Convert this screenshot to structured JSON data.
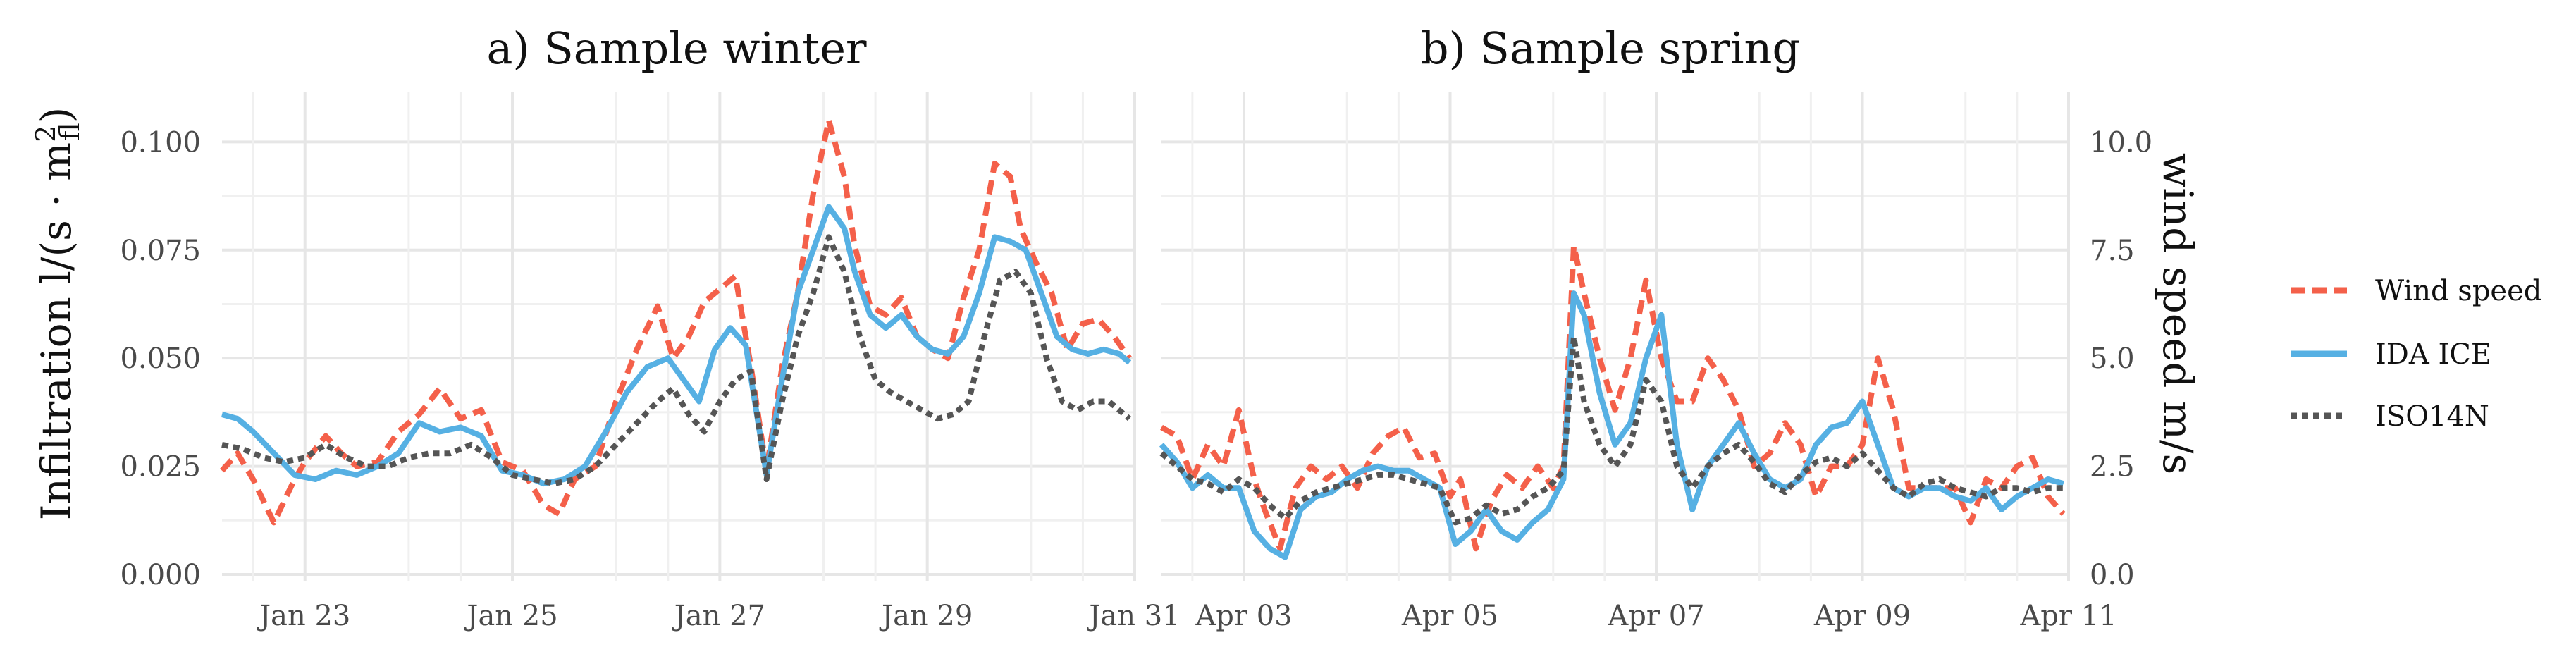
{
  "chart_data": {
    "type": "line",
    "y_axis": {
      "label": "Infiltration l/(s · m²_fl)",
      "label_main": "Infiltration l/(s · m",
      "label_sup": "2",
      "label_sub": "fl",
      "label_close": ")",
      "ylim": [
        0,
        0.11
      ],
      "ticks": [
        "0.000",
        "0.025",
        "0.050",
        "0.075",
        "0.100"
      ]
    },
    "secondary_y_axis": {
      "label": "wind speed m/s",
      "ylim": [
        0,
        11
      ],
      "ticks": [
        "0.0",
        "2.5",
        "5.0",
        "7.5",
        "10.0"
      ]
    },
    "legend": {
      "position": "right",
      "entries": [
        {
          "name": "Wind speed",
          "color": "#f4604a",
          "style": "dashed"
        },
        {
          "name": "IDA ICE",
          "color": "#56b0e3",
          "style": "solid"
        },
        {
          "name": "ISO14N",
          "color": "#555555",
          "style": "dotted"
        }
      ]
    },
    "panels": [
      {
        "title": "a) Sample winter",
        "x_range": [
          22.2,
          31.0
        ],
        "x_ticks": [
          {
            "value": 23,
            "label": "Jan 23"
          },
          {
            "value": 25,
            "label": "Jan 25"
          },
          {
            "value": 27,
            "label": "Jan 27"
          },
          {
            "value": 29,
            "label": "Jan 29"
          },
          {
            "value": 31,
            "label": "Jan 31"
          }
        ],
        "series": [
          {
            "name": "Wind speed",
            "unit": "m/s",
            "x": [
              22.2,
              22.35,
              22.5,
              22.7,
              22.9,
              23.0,
              23.2,
              23.35,
              23.5,
              23.7,
              23.9,
              24.1,
              24.3,
              24.5,
              24.7,
              24.9,
              25.1,
              25.3,
              25.45,
              25.6,
              25.8,
              26.0,
              26.2,
              26.4,
              26.55,
              26.7,
              26.85,
              27.0,
              27.15,
              27.3,
              27.45,
              27.6,
              27.75,
              27.9,
              28.05,
              28.2,
              28.3,
              28.45,
              28.6,
              28.75,
              28.9,
              29.05,
              29.2,
              29.35,
              29.5,
              29.65,
              29.8,
              29.9,
              30.05,
              30.2,
              30.35,
              30.5,
              30.65,
              30.8,
              30.95
            ],
            "values": [
              2.4,
              2.8,
              2.2,
              1.2,
              2.2,
              2.6,
              3.2,
              2.8,
              2.5,
              2.6,
              3.3,
              3.7,
              4.3,
              3.6,
              3.8,
              2.6,
              2.4,
              1.6,
              1.4,
              2.2,
              2.5,
              4.0,
              5.2,
              6.2,
              5.0,
              5.5,
              6.3,
              6.6,
              6.9,
              4.8,
              2.4,
              4.8,
              6.5,
              8.8,
              10.5,
              9.2,
              7.6,
              6.2,
              6.0,
              6.4,
              5.5,
              5.2,
              5.0,
              6.4,
              7.5,
              9.5,
              9.2,
              8.0,
              7.2,
              6.5,
              5.2,
              5.8,
              5.9,
              5.5,
              5.0
            ]
          },
          {
            "name": "IDA ICE",
            "unit": "l/(s·m²)",
            "x": [
              22.2,
              22.35,
              22.5,
              22.7,
              22.9,
              23.1,
              23.3,
              23.5,
              23.7,
              23.9,
              24.1,
              24.3,
              24.5,
              24.7,
              24.9,
              25.1,
              25.3,
              25.5,
              25.7,
              25.9,
              26.1,
              26.3,
              26.5,
              26.65,
              26.8,
              26.95,
              27.1,
              27.25,
              27.45,
              27.6,
              27.75,
              27.9,
              28.05,
              28.2,
              28.3,
              28.45,
              28.6,
              28.75,
              28.9,
              29.05,
              29.2,
              29.35,
              29.5,
              29.65,
              29.8,
              29.95,
              30.1,
              30.25,
              30.4,
              30.55,
              30.7,
              30.85,
              30.95
            ],
            "values": [
              0.037,
              0.036,
              0.033,
              0.028,
              0.023,
              0.022,
              0.024,
              0.023,
              0.025,
              0.028,
              0.035,
              0.033,
              0.034,
              0.032,
              0.024,
              0.023,
              0.021,
              0.022,
              0.025,
              0.033,
              0.042,
              0.048,
              0.05,
              0.045,
              0.04,
              0.052,
              0.057,
              0.053,
              0.023,
              0.045,
              0.065,
              0.075,
              0.085,
              0.08,
              0.07,
              0.06,
              0.057,
              0.06,
              0.055,
              0.052,
              0.051,
              0.055,
              0.065,
              0.078,
              0.077,
              0.075,
              0.065,
              0.055,
              0.052,
              0.051,
              0.052,
              0.051,
              0.049
            ]
          },
          {
            "name": "ISO14N",
            "unit": "l/(s·m²)",
            "x": [
              22.2,
              22.4,
              22.6,
              22.8,
              23.0,
              23.2,
              23.4,
              23.6,
              23.8,
              24.0,
              24.2,
              24.4,
              24.6,
              24.8,
              25.0,
              25.2,
              25.4,
              25.6,
              25.8,
              26.0,
              26.2,
              26.4,
              26.55,
              26.7,
              26.85,
              27.0,
              27.15,
              27.3,
              27.45,
              27.6,
              27.75,
              27.9,
              28.05,
              28.2,
              28.35,
              28.5,
              28.65,
              28.8,
              28.95,
              29.1,
              29.25,
              29.4,
              29.55,
              29.7,
              29.85,
              30.0,
              30.15,
              30.3,
              30.45,
              30.6,
              30.75,
              30.95
            ],
            "values": [
              0.03,
              0.029,
              0.027,
              0.026,
              0.027,
              0.03,
              0.027,
              0.025,
              0.025,
              0.027,
              0.028,
              0.028,
              0.03,
              0.027,
              0.023,
              0.022,
              0.021,
              0.022,
              0.025,
              0.03,
              0.035,
              0.04,
              0.043,
              0.037,
              0.033,
              0.04,
              0.045,
              0.047,
              0.022,
              0.04,
              0.055,
              0.065,
              0.078,
              0.07,
              0.055,
              0.045,
              0.042,
              0.04,
              0.038,
              0.036,
              0.037,
              0.04,
              0.055,
              0.068,
              0.07,
              0.065,
              0.05,
              0.04,
              0.038,
              0.04,
              0.04,
              0.036
            ]
          }
        ]
      },
      {
        "title": "b) Sample spring",
        "x_range": [
          2.2,
          11.0
        ],
        "x_ticks": [
          {
            "value": 3,
            "label": "Apr 03"
          },
          {
            "value": 5,
            "label": "Apr 05"
          },
          {
            "value": 7,
            "label": "Apr 07"
          },
          {
            "value": 9,
            "label": "Apr 09"
          },
          {
            "value": 11,
            "label": "Apr 11"
          }
        ],
        "series": [
          {
            "name": "Wind speed",
            "unit": "m/s",
            "x": [
              2.2,
              2.35,
              2.5,
              2.65,
              2.8,
              2.95,
              3.1,
              3.2,
              3.35,
              3.5,
              3.65,
              3.8,
              3.95,
              4.1,
              4.25,
              4.4,
              4.55,
              4.7,
              4.85,
              5.0,
              5.1,
              5.25,
              5.4,
              5.55,
              5.7,
              5.85,
              6.0,
              6.1,
              6.2,
              6.3,
              6.45,
              6.6,
              6.75,
              6.9,
              7.05,
              7.2,
              7.35,
              7.5,
              7.65,
              7.8,
              7.95,
              8.1,
              8.25,
              8.4,
              8.55,
              8.7,
              8.85,
              9.0,
              9.15,
              9.3,
              9.45,
              9.6,
              9.75,
              9.9,
              10.05,
              10.2,
              10.35,
              10.5,
              10.65,
              10.8,
              10.95
            ],
            "values": [
              3.4,
              3.2,
              2.2,
              3.0,
              2.5,
              3.8,
              2.2,
              1.5,
              0.6,
              2.0,
              2.5,
              2.2,
              2.5,
              2.0,
              2.8,
              3.2,
              3.4,
              2.7,
              2.8,
              1.8,
              2.2,
              0.6,
              1.7,
              2.3,
              2.0,
              2.5,
              2.0,
              2.5,
              7.6,
              6.5,
              5.0,
              3.8,
              5.0,
              6.8,
              5.0,
              4.0,
              4.0,
              5.0,
              4.5,
              3.8,
              2.5,
              2.8,
              3.5,
              3.0,
              1.8,
              2.5,
              2.5,
              3.0,
              5.0,
              3.8,
              2.0,
              2.0,
              2.0,
              2.0,
              1.2,
              2.2,
              2.0,
              2.5,
              2.7,
              1.8,
              1.4
            ]
          },
          {
            "name": "IDA ICE",
            "unit": "l/(s·m²)",
            "x": [
              2.2,
              2.35,
              2.5,
              2.65,
              2.8,
              2.95,
              3.1,
              3.25,
              3.4,
              3.55,
              3.7,
              3.85,
              4.0,
              4.15,
              4.3,
              4.45,
              4.6,
              4.75,
              4.9,
              5.05,
              5.2,
              5.35,
              5.5,
              5.65,
              5.8,
              5.95,
              6.1,
              6.2,
              6.3,
              6.45,
              6.6,
              6.75,
              6.9,
              7.05,
              7.2,
              7.35,
              7.5,
              7.65,
              7.8,
              7.95,
              8.1,
              8.25,
              8.4,
              8.55,
              8.7,
              8.85,
              9.0,
              9.15,
              9.3,
              9.45,
              9.6,
              9.75,
              9.9,
              10.05,
              10.2,
              10.35,
              10.5,
              10.65,
              10.8,
              10.95
            ],
            "values": [
              0.03,
              0.026,
              0.02,
              0.023,
              0.02,
              0.02,
              0.01,
              0.006,
              0.004,
              0.015,
              0.018,
              0.019,
              0.022,
              0.024,
              0.025,
              0.024,
              0.024,
              0.022,
              0.02,
              0.007,
              0.01,
              0.015,
              0.01,
              0.008,
              0.012,
              0.015,
              0.022,
              0.065,
              0.06,
              0.042,
              0.03,
              0.035,
              0.05,
              0.06,
              0.03,
              0.015,
              0.025,
              0.03,
              0.035,
              0.028,
              0.022,
              0.02,
              0.022,
              0.03,
              0.034,
              0.035,
              0.04,
              0.03,
              0.02,
              0.018,
              0.02,
              0.02,
              0.018,
              0.017,
              0.02,
              0.015,
              0.018,
              0.02,
              0.022,
              0.021
            ]
          },
          {
            "name": "ISO14N",
            "unit": "l/(s·m²)",
            "x": [
              2.2,
              2.35,
              2.5,
              2.65,
              2.8,
              2.95,
              3.1,
              3.25,
              3.4,
              3.55,
              3.7,
              3.85,
              4.0,
              4.15,
              4.3,
              4.45,
              4.6,
              4.75,
              4.9,
              5.05,
              5.2,
              5.35,
              5.5,
              5.65,
              5.8,
              5.95,
              6.1,
              6.2,
              6.3,
              6.45,
              6.6,
              6.75,
              6.9,
              7.05,
              7.2,
              7.35,
              7.5,
              7.65,
              7.8,
              7.95,
              8.1,
              8.25,
              8.4,
              8.55,
              8.7,
              8.85,
              9.0,
              9.15,
              9.3,
              9.45,
              9.6,
              9.75,
              9.9,
              10.05,
              10.2,
              10.35,
              10.5,
              10.65,
              10.8,
              10.95
            ],
            "values": [
              0.028,
              0.025,
              0.022,
              0.021,
              0.019,
              0.022,
              0.02,
              0.016,
              0.013,
              0.017,
              0.019,
              0.02,
              0.021,
              0.022,
              0.023,
              0.023,
              0.022,
              0.021,
              0.02,
              0.012,
              0.013,
              0.016,
              0.014,
              0.015,
              0.018,
              0.02,
              0.024,
              0.055,
              0.04,
              0.03,
              0.025,
              0.03,
              0.045,
              0.04,
              0.025,
              0.02,
              0.025,
              0.028,
              0.03,
              0.026,
              0.021,
              0.019,
              0.023,
              0.026,
              0.027,
              0.025,
              0.028,
              0.024,
              0.02,
              0.018,
              0.021,
              0.022,
              0.02,
              0.019,
              0.018,
              0.02,
              0.02,
              0.019,
              0.02,
              0.02
            ]
          }
        ]
      }
    ]
  }
}
